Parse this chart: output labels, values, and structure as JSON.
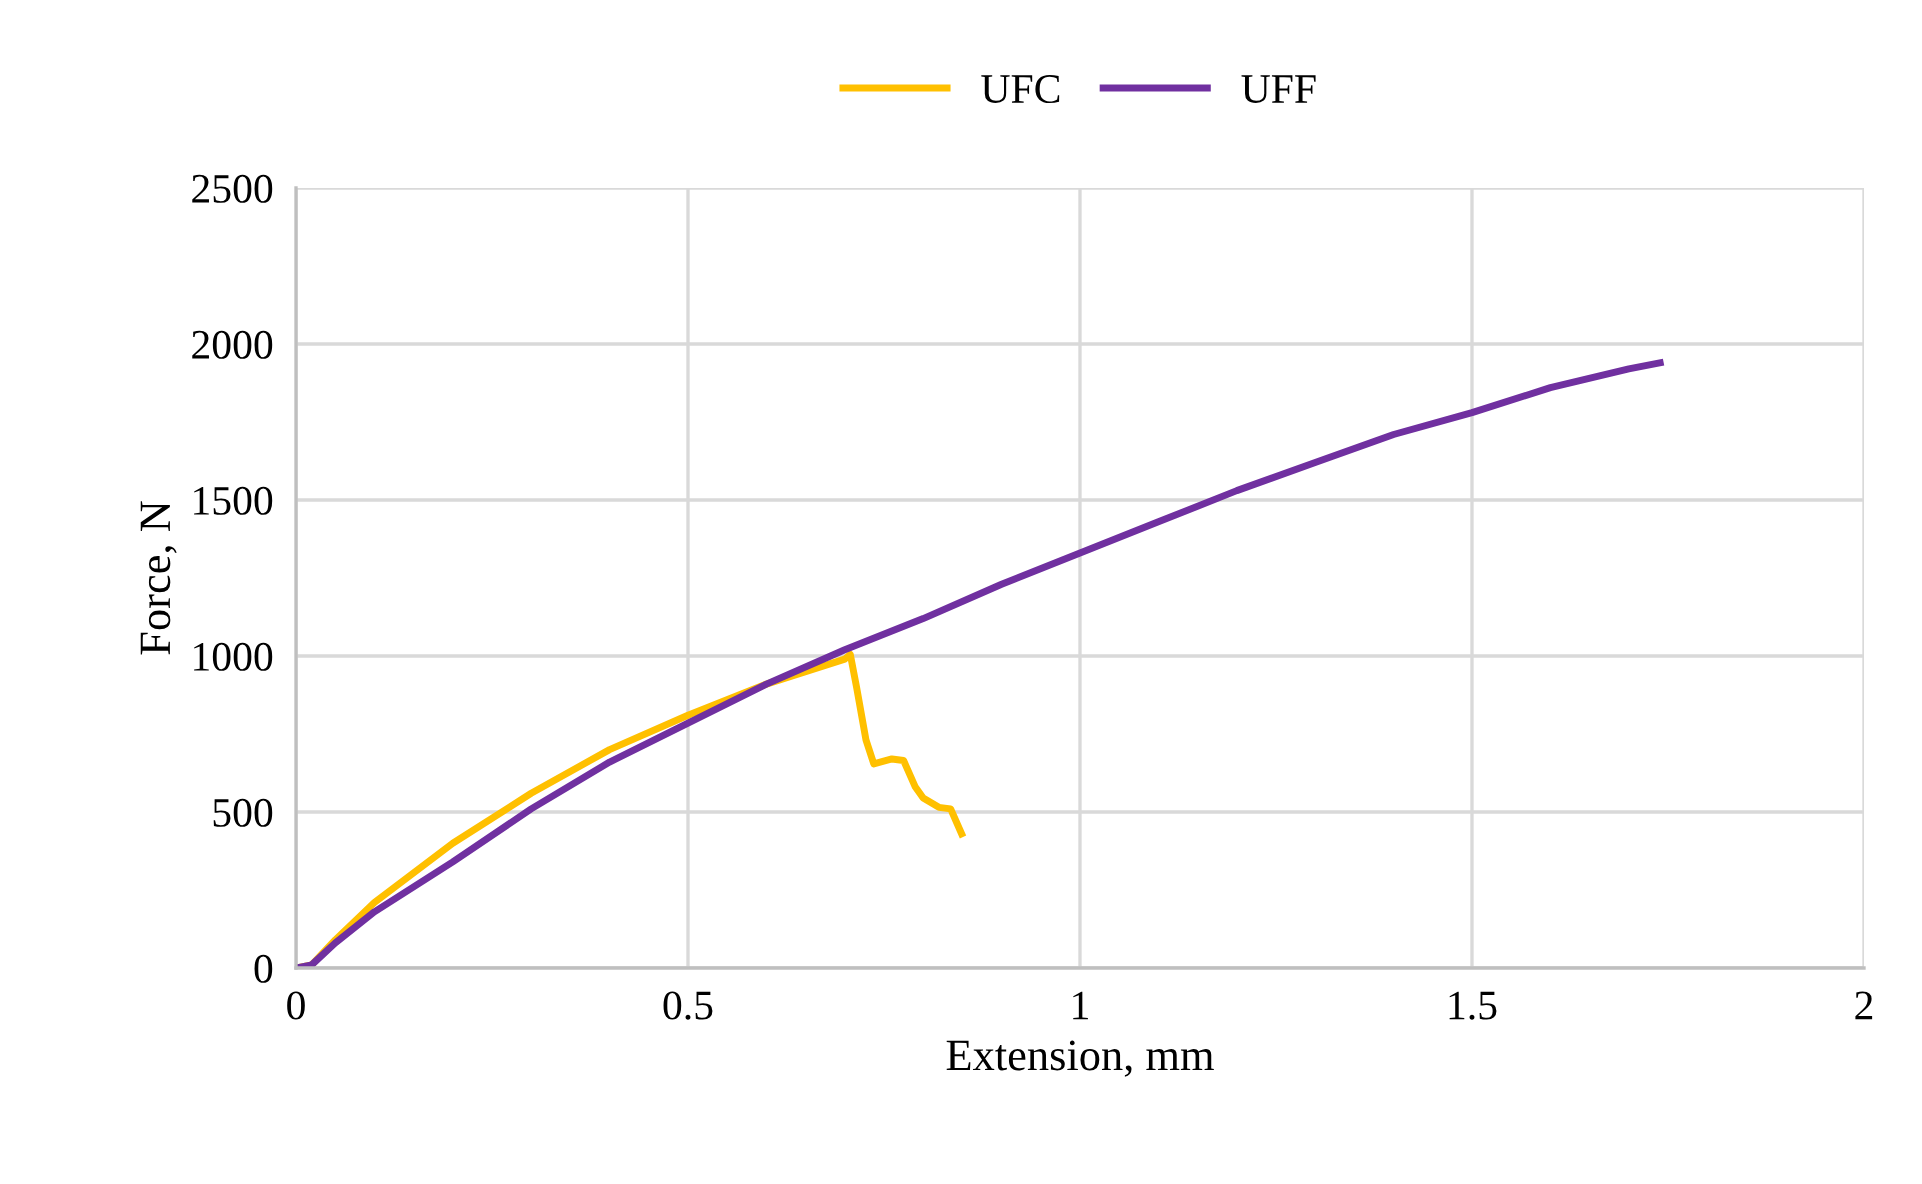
{
  "chart_data": {
    "type": "line",
    "xlabel": "Extension, mm",
    "ylabel": "Force, N",
    "xlim": [
      0,
      2
    ],
    "xticks": [
      0,
      0.5,
      1,
      1.5,
      2
    ],
    "ylim": [
      0,
      2500
    ],
    "yticks": [
      0,
      500,
      1000,
      1500,
      2000,
      2500
    ],
    "grid": true,
    "legend": "top",
    "marker": "none",
    "line_style": "solid",
    "series": [
      {
        "name": "UFC",
        "color": "#ffc000",
        "x": [
          0,
          0.02,
          0.05,
          0.1,
          0.2,
          0.3,
          0.4,
          0.5,
          0.6,
          0.7,
          0.707,
          0.715,
          0.727,
          0.737,
          0.76,
          0.775,
          0.79,
          0.8,
          0.82,
          0.835,
          0.849
        ],
        "values": [
          0,
          10,
          90,
          210,
          400,
          560,
          700,
          810,
          910,
          990,
          1005,
          900,
          731,
          654,
          670,
          665,
          580,
          545,
          515,
          510,
          430
        ]
      },
      {
        "name": "UFF",
        "color": "#7030a0",
        "x": [
          0,
          0.02,
          0.05,
          0.1,
          0.2,
          0.3,
          0.4,
          0.5,
          0.6,
          0.7,
          0.8,
          0.9,
          1.0,
          1.1,
          1.2,
          1.3,
          1.4,
          1.5,
          1.6,
          1.7,
          1.74
        ],
        "values": [
          0,
          10,
          80,
          180,
          340,
          510,
          660,
          785,
          910,
          1020,
          1120,
          1230,
          1330,
          1430,
          1530,
          1620,
          1710,
          1780,
          1860,
          1920,
          1940
        ]
      }
    ]
  }
}
